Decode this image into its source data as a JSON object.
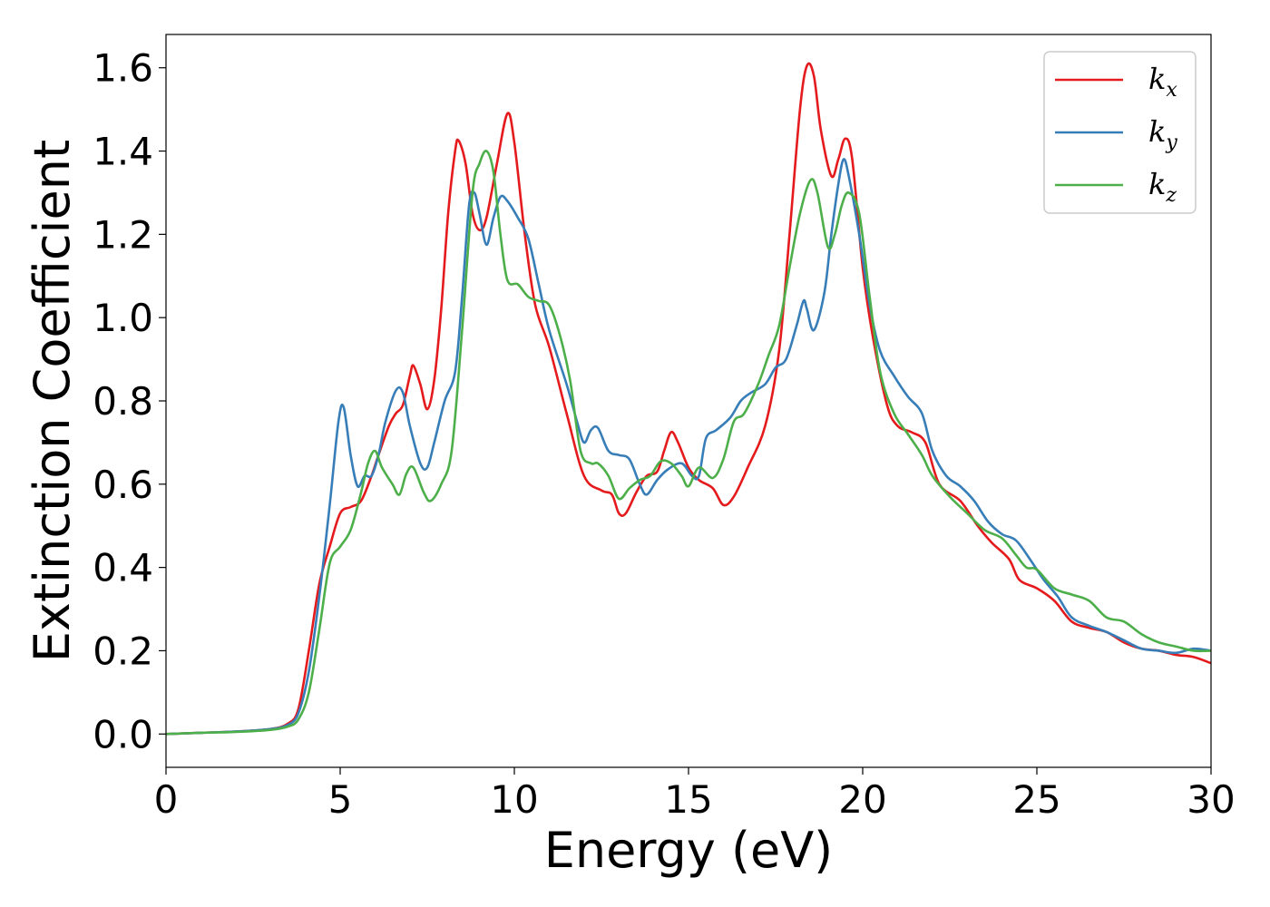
{
  "chart_data": {
    "type": "line",
    "title": "",
    "xlabel": "Energy (eV)",
    "ylabel": "Extinction Coefficient",
    "xlim": [
      0,
      30
    ],
    "ylim": [
      -0.08,
      1.68
    ],
    "xticks": [
      0,
      5,
      10,
      15,
      20,
      25,
      30
    ],
    "yticks": [
      0.0,
      0.2,
      0.4,
      0.6,
      0.8,
      1.0,
      1.2,
      1.4,
      1.6
    ],
    "grid": false,
    "legend_position": "top-right",
    "series": [
      {
        "name": "k",
        "subscript": "x",
        "color": "#e41a1c",
        "points": [
          [
            0,
            0
          ],
          [
            1,
            0.003
          ],
          [
            2,
            0.006
          ],
          [
            3,
            0.012
          ],
          [
            3.5,
            0.025
          ],
          [
            3.8,
            0.06
          ],
          [
            4.1,
            0.2
          ],
          [
            4.4,
            0.36
          ],
          [
            4.7,
            0.45
          ],
          [
            5.0,
            0.53
          ],
          [
            5.3,
            0.545
          ],
          [
            5.6,
            0.56
          ],
          [
            5.9,
            0.62
          ],
          [
            6.1,
            0.67
          ],
          [
            6.4,
            0.74
          ],
          [
            6.6,
            0.77
          ],
          [
            6.8,
            0.79
          ],
          [
            7.0,
            0.86
          ],
          [
            7.1,
            0.885
          ],
          [
            7.3,
            0.84
          ],
          [
            7.5,
            0.78
          ],
          [
            7.7,
            0.85
          ],
          [
            7.9,
            1.02
          ],
          [
            8.1,
            1.25
          ],
          [
            8.3,
            1.4
          ],
          [
            8.4,
            1.425
          ],
          [
            8.6,
            1.37
          ],
          [
            8.8,
            1.25
          ],
          [
            9.0,
            1.21
          ],
          [
            9.2,
            1.24
          ],
          [
            9.5,
            1.37
          ],
          [
            9.8,
            1.49
          ],
          [
            10.0,
            1.42
          ],
          [
            10.3,
            1.2
          ],
          [
            10.6,
            1.03
          ],
          [
            11.0,
            0.93
          ],
          [
            11.5,
            0.77
          ],
          [
            12.0,
            0.62
          ],
          [
            12.5,
            0.585
          ],
          [
            12.8,
            0.575
          ],
          [
            13.0,
            0.53
          ],
          [
            13.2,
            0.53
          ],
          [
            13.5,
            0.58
          ],
          [
            13.8,
            0.62
          ],
          [
            14.1,
            0.63
          ],
          [
            14.3,
            0.68
          ],
          [
            14.5,
            0.725
          ],
          [
            14.7,
            0.7
          ],
          [
            15.0,
            0.64
          ],
          [
            15.3,
            0.61
          ],
          [
            15.7,
            0.59
          ],
          [
            16.0,
            0.55
          ],
          [
            16.3,
            0.57
          ],
          [
            16.7,
            0.64
          ],
          [
            17.2,
            0.74
          ],
          [
            17.6,
            0.92
          ],
          [
            17.9,
            1.2
          ],
          [
            18.2,
            1.5
          ],
          [
            18.4,
            1.605
          ],
          [
            18.6,
            1.58
          ],
          [
            18.8,
            1.45
          ],
          [
            19.1,
            1.34
          ],
          [
            19.3,
            1.38
          ],
          [
            19.5,
            1.43
          ],
          [
            19.7,
            1.38
          ],
          [
            20.0,
            1.12
          ],
          [
            20.3,
            0.95
          ],
          [
            20.7,
            0.79
          ],
          [
            21.0,
            0.74
          ],
          [
            21.4,
            0.725
          ],
          [
            21.8,
            0.7
          ],
          [
            22.2,
            0.6
          ],
          [
            22.8,
            0.56
          ],
          [
            23.3,
            0.5
          ],
          [
            23.7,
            0.46
          ],
          [
            24.2,
            0.42
          ],
          [
            24.5,
            0.37
          ],
          [
            25.0,
            0.35
          ],
          [
            25.5,
            0.32
          ],
          [
            26.0,
            0.27
          ],
          [
            26.5,
            0.255
          ],
          [
            27.0,
            0.245
          ],
          [
            27.5,
            0.22
          ],
          [
            28.0,
            0.205
          ],
          [
            28.5,
            0.2
          ],
          [
            29.0,
            0.19
          ],
          [
            29.5,
            0.185
          ],
          [
            30.0,
            0.17
          ]
        ]
      },
      {
        "name": "k",
        "subscript": "y",
        "color": "#377eb8",
        "points": [
          [
            0,
            0
          ],
          [
            1,
            0.003
          ],
          [
            2,
            0.006
          ],
          [
            3,
            0.012
          ],
          [
            3.5,
            0.022
          ],
          [
            3.8,
            0.05
          ],
          [
            4.1,
            0.15
          ],
          [
            4.4,
            0.33
          ],
          [
            4.7,
            0.55
          ],
          [
            4.95,
            0.75
          ],
          [
            5.1,
            0.785
          ],
          [
            5.3,
            0.67
          ],
          [
            5.5,
            0.595
          ],
          [
            5.7,
            0.62
          ],
          [
            5.9,
            0.62
          ],
          [
            6.1,
            0.67
          ],
          [
            6.3,
            0.75
          ],
          [
            6.6,
            0.825
          ],
          [
            6.8,
            0.82
          ],
          [
            7.0,
            0.74
          ],
          [
            7.3,
            0.65
          ],
          [
            7.5,
            0.64
          ],
          [
            7.7,
            0.7
          ],
          [
            8.0,
            0.8
          ],
          [
            8.3,
            0.87
          ],
          [
            8.5,
            1.05
          ],
          [
            8.7,
            1.27
          ],
          [
            8.85,
            1.3
          ],
          [
            9.0,
            1.25
          ],
          [
            9.2,
            1.175
          ],
          [
            9.4,
            1.24
          ],
          [
            9.6,
            1.29
          ],
          [
            9.8,
            1.28
          ],
          [
            10.1,
            1.24
          ],
          [
            10.4,
            1.19
          ],
          [
            10.7,
            1.08
          ],
          [
            11.0,
            0.97
          ],
          [
            11.5,
            0.84
          ],
          [
            11.8,
            0.75
          ],
          [
            12.0,
            0.7
          ],
          [
            12.2,
            0.73
          ],
          [
            12.4,
            0.735
          ],
          [
            12.7,
            0.68
          ],
          [
            13.0,
            0.67
          ],
          [
            13.3,
            0.66
          ],
          [
            13.6,
            0.6
          ],
          [
            13.8,
            0.575
          ],
          [
            14.1,
            0.61
          ],
          [
            14.4,
            0.635
          ],
          [
            14.8,
            0.65
          ],
          [
            15.1,
            0.62
          ],
          [
            15.3,
            0.62
          ],
          [
            15.5,
            0.71
          ],
          [
            15.8,
            0.73
          ],
          [
            16.2,
            0.76
          ],
          [
            16.5,
            0.8
          ],
          [
            16.8,
            0.82
          ],
          [
            17.2,
            0.84
          ],
          [
            17.5,
            0.88
          ],
          [
            17.8,
            0.9
          ],
          [
            18.1,
            0.98
          ],
          [
            18.3,
            1.04
          ],
          [
            18.4,
            1.02
          ],
          [
            18.6,
            0.97
          ],
          [
            18.9,
            1.06
          ],
          [
            19.1,
            1.2
          ],
          [
            19.3,
            1.32
          ],
          [
            19.45,
            1.38
          ],
          [
            19.6,
            1.34
          ],
          [
            19.9,
            1.2
          ],
          [
            20.2,
            1.03
          ],
          [
            20.5,
            0.92
          ],
          [
            20.9,
            0.86
          ],
          [
            21.3,
            0.81
          ],
          [
            21.7,
            0.77
          ],
          [
            22.0,
            0.68
          ],
          [
            22.4,
            0.62
          ],
          [
            22.8,
            0.595
          ],
          [
            23.2,
            0.56
          ],
          [
            23.6,
            0.51
          ],
          [
            24.0,
            0.48
          ],
          [
            24.4,
            0.465
          ],
          [
            24.8,
            0.42
          ],
          [
            25.2,
            0.37
          ],
          [
            25.6,
            0.33
          ],
          [
            26.0,
            0.28
          ],
          [
            26.5,
            0.26
          ],
          [
            27.0,
            0.245
          ],
          [
            27.5,
            0.225
          ],
          [
            28.0,
            0.205
          ],
          [
            28.5,
            0.2
          ],
          [
            29.0,
            0.195
          ],
          [
            29.5,
            0.205
          ],
          [
            30.0,
            0.2
          ]
        ]
      },
      {
        "name": "k",
        "subscript": "z",
        "color": "#4daf4a",
        "points": [
          [
            0,
            0
          ],
          [
            1,
            0.003
          ],
          [
            2,
            0.005
          ],
          [
            3,
            0.01
          ],
          [
            3.5,
            0.018
          ],
          [
            3.8,
            0.035
          ],
          [
            4.1,
            0.1
          ],
          [
            4.4,
            0.25
          ],
          [
            4.7,
            0.41
          ],
          [
            5.0,
            0.45
          ],
          [
            5.3,
            0.49
          ],
          [
            5.6,
            0.58
          ],
          [
            5.8,
            0.65
          ],
          [
            6.0,
            0.68
          ],
          [
            6.2,
            0.64
          ],
          [
            6.5,
            0.6
          ],
          [
            6.7,
            0.575
          ],
          [
            6.9,
            0.625
          ],
          [
            7.1,
            0.64
          ],
          [
            7.4,
            0.58
          ],
          [
            7.6,
            0.56
          ],
          [
            7.9,
            0.6
          ],
          [
            8.2,
            0.68
          ],
          [
            8.5,
            0.97
          ],
          [
            8.8,
            1.3
          ],
          [
            9.0,
            1.37
          ],
          [
            9.2,
            1.4
          ],
          [
            9.4,
            1.35
          ],
          [
            9.6,
            1.2
          ],
          [
            9.8,
            1.09
          ],
          [
            10.1,
            1.08
          ],
          [
            10.4,
            1.05
          ],
          [
            10.7,
            1.04
          ],
          [
            11.0,
            1.03
          ],
          [
            11.3,
            0.96
          ],
          [
            11.6,
            0.85
          ],
          [
            11.9,
            0.68
          ],
          [
            12.2,
            0.65
          ],
          [
            12.4,
            0.65
          ],
          [
            12.7,
            0.62
          ],
          [
            13.0,
            0.565
          ],
          [
            13.3,
            0.59
          ],
          [
            13.6,
            0.61
          ],
          [
            13.9,
            0.62
          ],
          [
            14.2,
            0.655
          ],
          [
            14.5,
            0.65
          ],
          [
            14.8,
            0.62
          ],
          [
            15.0,
            0.595
          ],
          [
            15.3,
            0.64
          ],
          [
            15.7,
            0.615
          ],
          [
            16.0,
            0.66
          ],
          [
            16.3,
            0.75
          ],
          [
            16.6,
            0.77
          ],
          [
            17.0,
            0.84
          ],
          [
            17.3,
            0.91
          ],
          [
            17.6,
            0.98
          ],
          [
            17.9,
            1.12
          ],
          [
            18.2,
            1.25
          ],
          [
            18.5,
            1.33
          ],
          [
            18.7,
            1.3
          ],
          [
            19.0,
            1.17
          ],
          [
            19.2,
            1.2
          ],
          [
            19.4,
            1.27
          ],
          [
            19.6,
            1.3
          ],
          [
            19.9,
            1.25
          ],
          [
            20.2,
            1.05
          ],
          [
            20.5,
            0.87
          ],
          [
            20.9,
            0.77
          ],
          [
            21.3,
            0.72
          ],
          [
            21.7,
            0.67
          ],
          [
            22.0,
            0.62
          ],
          [
            22.5,
            0.57
          ],
          [
            23.0,
            0.53
          ],
          [
            23.5,
            0.49
          ],
          [
            24.0,
            0.47
          ],
          [
            24.4,
            0.43
          ],
          [
            24.7,
            0.4
          ],
          [
            25.0,
            0.395
          ],
          [
            25.5,
            0.35
          ],
          [
            26.0,
            0.335
          ],
          [
            26.5,
            0.32
          ],
          [
            27.0,
            0.28
          ],
          [
            27.5,
            0.27
          ],
          [
            28.0,
            0.24
          ],
          [
            28.5,
            0.22
          ],
          [
            29.0,
            0.21
          ],
          [
            29.5,
            0.2
          ],
          [
            30.0,
            0.2
          ]
        ]
      }
    ]
  }
}
